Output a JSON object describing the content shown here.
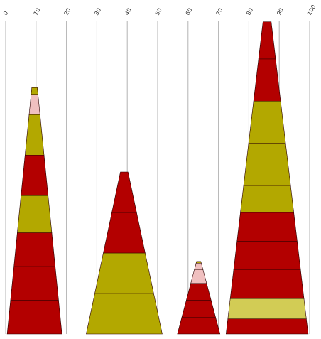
{
  "chart_data": {
    "type": "stacked-cone",
    "title": "",
    "xlabel": "",
    "ylabel": "",
    "grid": true,
    "x_axis_position": "top",
    "x_axis_label_rotation": -60,
    "xlim": [
      0,
      100
    ],
    "x_ticks": [
      0,
      10,
      20,
      30,
      40,
      50,
      60,
      70,
      80,
      90,
      100
    ],
    "x_tick_labels": [
      "0",
      "10",
      "20",
      "30",
      "40",
      "50",
      "60",
      "70",
      "80",
      "90",
      "100"
    ],
    "colors": {
      "red": "#b30000",
      "olive": "#b3a800",
      "pink": "#f0c0c0",
      "yellow": "#d2cc55"
    },
    "cones": [
      {
        "x_range": [
          0.5,
          18.5
        ],
        "segments": [
          {
            "value": 1,
            "color": "red"
          },
          {
            "value": 1,
            "color": "red"
          },
          {
            "value": 1,
            "color": "red"
          },
          {
            "value": 1.1,
            "color": "olive"
          },
          {
            "value": 1.2,
            "color": "red"
          },
          {
            "value": 1.2,
            "color": "olive"
          },
          {
            "value": 0.6,
            "color": "pink"
          },
          {
            "value": 0.2,
            "color": "olive"
          }
        ]
      },
      {
        "x_range": [
          26.5,
          51.5
        ],
        "segments": [
          {
            "value": 1.2,
            "color": "olive"
          },
          {
            "value": 1.2,
            "color": "olive"
          },
          {
            "value": 1.2,
            "color": "red"
          },
          {
            "value": 1.2,
            "color": "red"
          }
        ]
      },
      {
        "x_range": [
          56.5,
          70.5
        ],
        "segments": [
          {
            "value": 0.5,
            "color": "red"
          },
          {
            "value": 0.5,
            "color": "red"
          },
          {
            "value": 0.5,
            "color": "red"
          },
          {
            "value": 0.4,
            "color": "pink"
          },
          {
            "value": 0.2,
            "color": "pink"
          },
          {
            "value": 0.05,
            "color": "olive"
          }
        ]
      },
      {
        "x_range": [
          72.5,
          99.5
        ],
        "segments": [
          {
            "value": 0.45,
            "color": "red"
          },
          {
            "value": 0.6,
            "color": "yellow"
          },
          {
            "value": 0.85,
            "color": "red"
          },
          {
            "value": 0.85,
            "color": "red"
          },
          {
            "value": 0.85,
            "color": "red"
          },
          {
            "value": 0.8,
            "color": "olive"
          },
          {
            "value": 1.25,
            "color": "olive"
          },
          {
            "value": 1.25,
            "color": "olive"
          },
          {
            "value": 1.25,
            "color": "red"
          },
          {
            "value": 1.1,
            "color": "red"
          }
        ]
      }
    ]
  }
}
